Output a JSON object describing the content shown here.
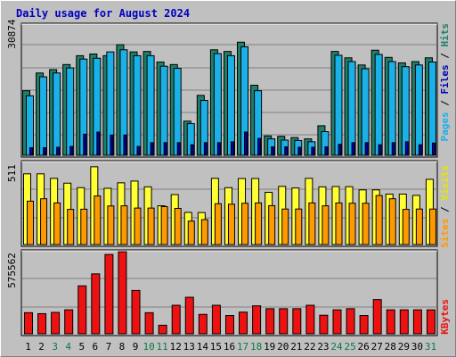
{
  "title": "Daily usage for August 2024",
  "colors": {
    "background": "#c0c0c0",
    "title": "#0000c0",
    "pages": "#1f7f6a",
    "files": "#1ab0e8",
    "hits": "#0000b0",
    "visits": "#ffff33",
    "sites": "#ff9900",
    "kbytes": "#ee1111",
    "weekend_label": "#0a7a40",
    "weekday_label": "#000000"
  },
  "chart_data": [
    {
      "type": "bar",
      "title": "",
      "ymax_label": "30874",
      "ylim": [
        0,
        30874
      ],
      "legend": {
        "hits": "Hits",
        "sep1": " / ",
        "files": "Files",
        "sep2": " / ",
        "pages": "Pages"
      },
      "categories": [
        "1",
        "2",
        "3",
        "4",
        "5",
        "6",
        "7",
        "8",
        "9",
        "10",
        "11",
        "12",
        "13",
        "14",
        "15",
        "16",
        "17",
        "18",
        "19",
        "20",
        "21",
        "22",
        "23",
        "24",
        "25",
        "26",
        "27",
        "28",
        "29",
        "30",
        "31"
      ],
      "series": [
        {
          "name": "Pages",
          "values": [
            15300,
            19500,
            20300,
            21500,
            23600,
            24000,
            23600,
            26200,
            24500,
            24600,
            22100,
            21500,
            8100,
            14200,
            25000,
            24600,
            26800,
            16600,
            4600,
            4500,
            4200,
            3900,
            7000,
            24600,
            23100,
            21400,
            24900,
            23200,
            21900,
            22200,
            23100
          ]
        },
        {
          "name": "Files",
          "values": [
            14100,
            18600,
            19500,
            20700,
            22800,
            23000,
            24500,
            25000,
            23600,
            23600,
            21100,
            20600,
            7500,
            13000,
            24100,
            23600,
            25700,
            15300,
            3900,
            3600,
            3500,
            3200,
            5600,
            23700,
            22200,
            20500,
            23900,
            22200,
            21000,
            21400,
            22100
          ]
        },
        {
          "name": "Hits",
          "values": [
            1800,
            1800,
            1900,
            2100,
            5000,
            5500,
            4800,
            4800,
            2100,
            3000,
            3000,
            3000,
            2500,
            3000,
            3000,
            3200,
            5500,
            4000,
            2000,
            2000,
            1900,
            1900,
            2000,
            2600,
            3000,
            3000,
            2500,
            3000,
            3200,
            2500,
            2900
          ]
        }
      ]
    },
    {
      "type": "bar",
      "title": "",
      "ymax_label": "511",
      "ylim": [
        0,
        511
      ],
      "legend": {
        "visits": "Visits",
        "sep": " / ",
        "sites": "Sites"
      },
      "categories": [
        "1",
        "2",
        "3",
        "4",
        "5",
        "6",
        "7",
        "8",
        "9",
        "10",
        "11",
        "12",
        "13",
        "14",
        "15",
        "16",
        "17",
        "18",
        "19",
        "20",
        "21",
        "22",
        "23",
        "24",
        "25",
        "26",
        "27",
        "28",
        "29",
        "30",
        "31"
      ],
      "series": [
        {
          "name": "Visits",
          "values": [
            440,
            440,
            412,
            382,
            354,
            484,
            350,
            384,
            395,
            359,
            241,
            311,
            200,
            199,
            412,
            354,
            411,
            411,
            325,
            362,
            352,
            412,
            359,
            361,
            360,
            340,
            340,
            314,
            314,
            306,
            406
          ]
        },
        {
          "name": "Sites",
          "values": [
            270,
            285,
            259,
            219,
            220,
            302,
            240,
            241,
            227,
            227,
            236,
            225,
            146,
            155,
            254,
            251,
            257,
            259,
            242,
            221,
            221,
            259,
            241,
            259,
            257,
            257,
            305,
            285,
            219,
            221,
            221
          ]
        }
      ]
    },
    {
      "type": "bar",
      "title": "",
      "ymax_label": "575562",
      "ylim": [
        0,
        575562
      ],
      "legend": {
        "kbytes": "KBytes"
      },
      "categories": [
        "1",
        "2",
        "3",
        "4",
        "5",
        "6",
        "7",
        "8",
        "9",
        "10",
        "11",
        "12",
        "13",
        "14",
        "15",
        "16",
        "17",
        "18",
        "19",
        "20",
        "21",
        "22",
        "23",
        "24",
        "25",
        "26",
        "27",
        "28",
        "29",
        "30",
        "31"
      ],
      "series": [
        {
          "name": "KBytes",
          "values": [
            148000,
            141000,
            150000,
            168000,
            336000,
            420000,
            556000,
            575562,
            304000,
            148000,
            60000,
            200000,
            256000,
            136000,
            200000,
            128000,
            152000,
            196000,
            176000,
            176000,
            176000,
            200000,
            130000,
            168000,
            176000,
            128000,
            240000,
            168000,
            168000,
            168000,
            168000
          ]
        }
      ]
    }
  ],
  "day_labels": [
    "1",
    "2",
    "3",
    "4",
    "5",
    "6",
    "7",
    "8",
    "9",
    "10",
    "11",
    "12",
    "13",
    "14",
    "15",
    "16",
    "17",
    "18",
    "19",
    "20",
    "21",
    "22",
    "23",
    "24",
    "25",
    "26",
    "27",
    "28",
    "29",
    "30",
    "31"
  ],
  "weekend_days": [
    3,
    4,
    10,
    11,
    17,
    18,
    24,
    25,
    31
  ]
}
